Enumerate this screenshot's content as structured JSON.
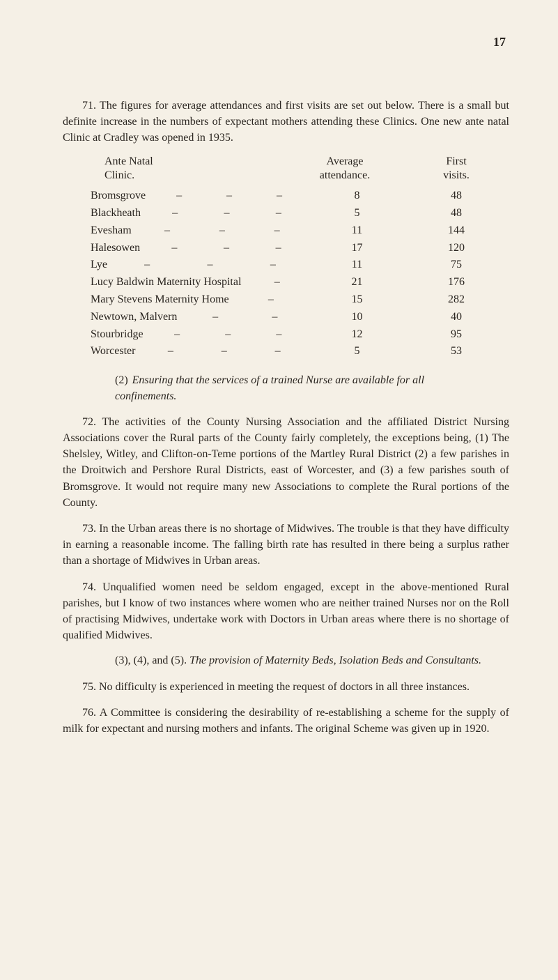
{
  "page_number": "17",
  "para_71_a": "71. The figures for average attendances and first visits are set out below. There is a small but definite increase in the numbers of expectant mothers attending these Clinics. One new ante natal Clinic at Cradley was opened in 1935.",
  "table": {
    "header": {
      "clinic_line1": "Ante Natal",
      "clinic_line2": "Clinic.",
      "avg_line1": "Average",
      "avg_line2": "attendance.",
      "first_line1": "First",
      "first_line2": "visits."
    },
    "rows": [
      {
        "name": "Bromsgrove",
        "dashes": 3,
        "avg": "8",
        "first": "48"
      },
      {
        "name": "Blackheath",
        "dashes": 3,
        "avg": "5",
        "first": "48"
      },
      {
        "name": "Evesham",
        "dashes": 3,
        "avg": "11",
        "first": "144"
      },
      {
        "name": "Halesowen",
        "dashes": 3,
        "avg": "17",
        "first": "120"
      },
      {
        "name": "Lye",
        "dashes": 3,
        "avg": "11",
        "first": "75"
      },
      {
        "name": "Lucy Baldwin Maternity Hospital",
        "dashes": 1,
        "avg": "21",
        "first": "176"
      },
      {
        "name": "Mary Stevens Maternity Home",
        "dashes": 1,
        "avg": "15",
        "first": "282"
      },
      {
        "name": "Newtown, Malvern",
        "dashes": 2,
        "avg": "10",
        "first": "40"
      },
      {
        "name": "Stourbridge",
        "dashes": 3,
        "avg": "12",
        "first": "95"
      },
      {
        "name": "Worcester",
        "dashes": 3,
        "avg": "5",
        "first": "53"
      }
    ]
  },
  "subsection_2_num": "(2)",
  "subsection_2": "Ensuring that the services of a trained Nurse are available for all confinements.",
  "para_72": "72. The activities of the County Nursing Association and the affiliated District Nursing Associations cover the Rural parts of the County fairly completely, the exceptions being, (1) The Shelsley, Witley, and Clifton-on-Teme portions of the Martley Rural District (2) a few parishes in the Droitwich and Pershore Rural Districts, east of Worcester, and (3) a few parishes south of Bromsgrove. It would not require many new Associations to complete the Rural portions of the County.",
  "para_73": "73. In the Urban areas there is no shortage of Midwives. The trouble is that they have difficulty in earning a reasonable income. The falling birth rate has resulted in there being a surplus rather than a shortage of Midwives in Urban areas.",
  "para_74": "74. Unqualified women need be seldom engaged, except in the above-mentioned Rural parishes, but I know of two instances where women who are neither trained Nurses nor on the Roll of practising Midwives, undertake work with Doctors in Urban areas where there is no shortage of qualified Midwives.",
  "subsection_345_nums": "(3), (4), and (5).",
  "subsection_345": "The provision of Maternity Beds, Isolation Beds and Consultants.",
  "para_75": "75. No difficulty is experienced in meeting the request of doctors in all three instances.",
  "para_76": "76. A Committee is considering the desirability of re-establishing a scheme for the supply of milk for expectant and nursing mothers and infants. The original Scheme was given up in 1920.",
  "dash_char": "–"
}
